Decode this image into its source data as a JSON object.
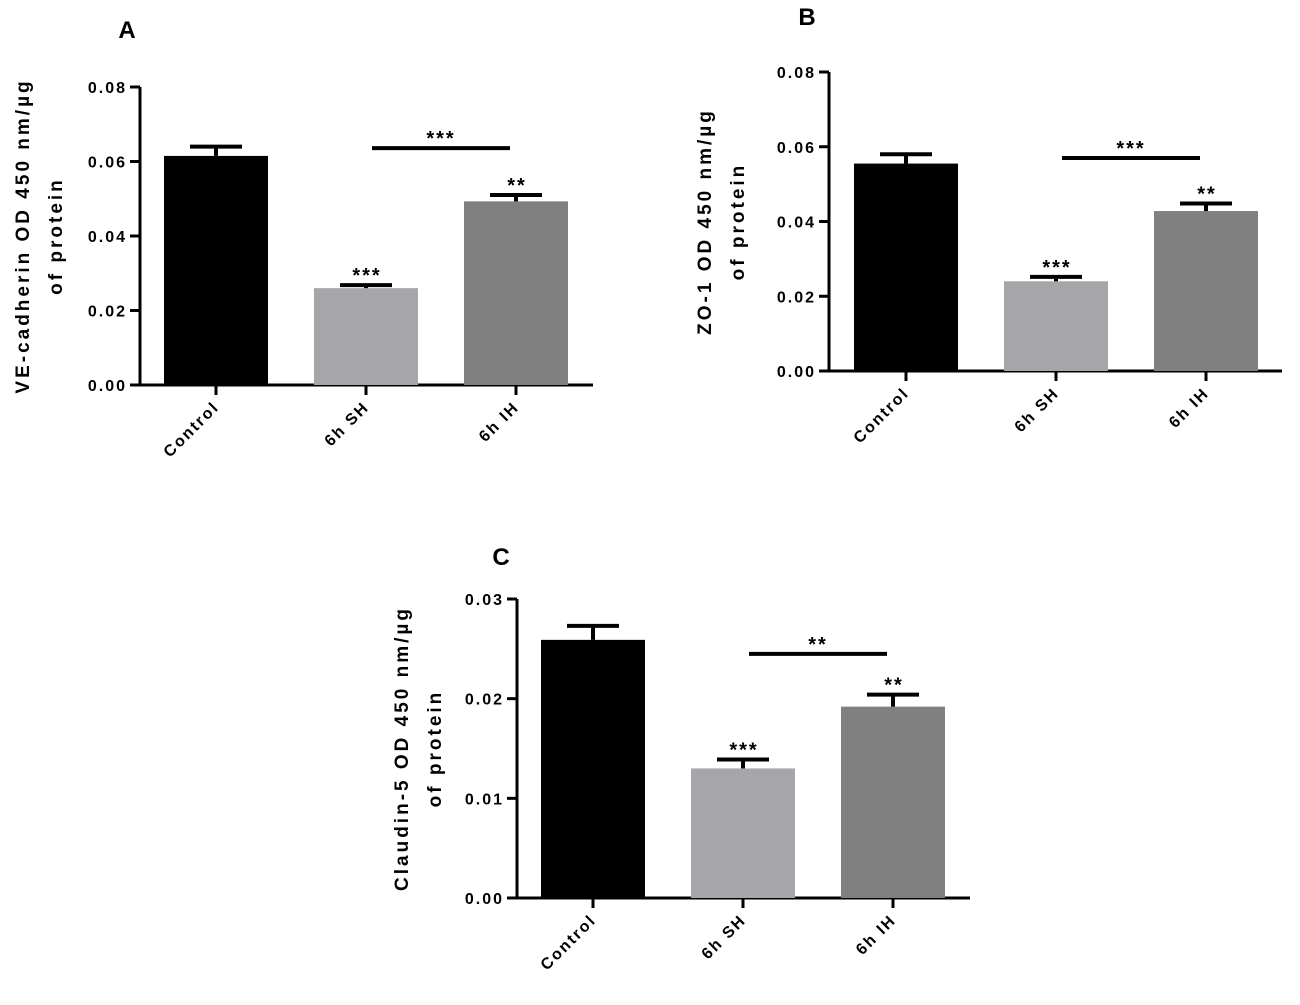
{
  "chart_data": [
    {
      "panel": "A",
      "type": "bar",
      "categories": [
        "Control",
        "6h SH",
        "6h IH"
      ],
      "values": [
        0.0615,
        0.026,
        0.0493
      ],
      "errors": [
        0.0025,
        0.0008,
        0.0017
      ],
      "bar_colors": [
        "#000000",
        "#a6a5aa",
        "#808080"
      ],
      "ylabel_lines": [
        "VE-cadherin OD 450 nm/µg",
        "of protein"
      ],
      "ylim": [
        0,
        0.08
      ],
      "yticks": [
        "0.00",
        "0.02",
        "0.04",
        "0.06",
        "0.08"
      ],
      "bar_annotations": [
        "",
        "***",
        "**"
      ],
      "comparison": {
        "from": "6h SH",
        "to": "6h IH",
        "label": "***",
        "y": 0.0636
      }
    },
    {
      "panel": "B",
      "type": "bar",
      "categories": [
        "Control",
        "6h SH",
        "6h IH"
      ],
      "values": [
        0.0555,
        0.024,
        0.0428
      ],
      "errors": [
        0.0025,
        0.0012,
        0.002
      ],
      "bar_colors": [
        "#000000",
        "#a6a5aa",
        "#808080"
      ],
      "ylabel_lines": [
        "ZO-1 OD 450 nm/µg",
        "of protein"
      ],
      "ylim": [
        0,
        0.08
      ],
      "yticks": [
        "0.00",
        "0.02",
        "0.04",
        "0.06",
        "0.08"
      ],
      "bar_annotations": [
        "",
        "***",
        "**"
      ],
      "comparison": {
        "from": "6h SH",
        "to": "6h IH",
        "label": "***",
        "y": 0.057
      }
    },
    {
      "panel": "C",
      "type": "bar",
      "categories": [
        "Control",
        "6h SH",
        "6h IH"
      ],
      "values": [
        0.0259,
        0.013,
        0.0192
      ],
      "errors": [
        0.0014,
        0.0009,
        0.0012
      ],
      "bar_colors": [
        "#000000",
        "#a6a5aa",
        "#808080"
      ],
      "ylabel_lines": [
        "Claudin-5 OD 450 nm/µg",
        "of protein"
      ],
      "ylim": [
        0,
        0.03
      ],
      "yticks": [
        "0.00",
        "0.01",
        "0.02",
        "0.03"
      ],
      "bar_annotations": [
        "",
        "***",
        "**"
      ],
      "comparison": {
        "from": "6h SH",
        "to": "6h IH",
        "label": "**",
        "y": 0.0245
      }
    }
  ]
}
